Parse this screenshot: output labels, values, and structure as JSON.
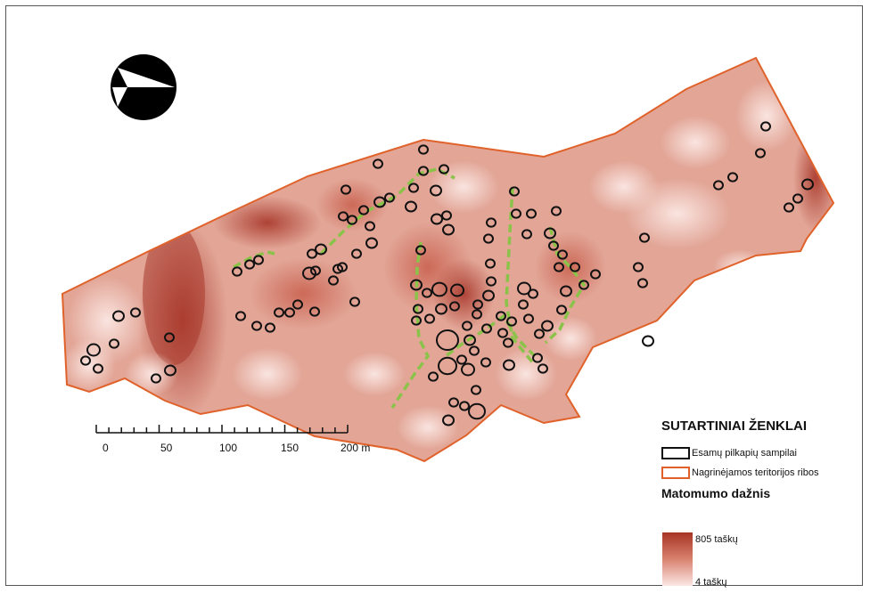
{
  "legend": {
    "title": "SUTARTINIAI ŽENKLAI",
    "items": [
      {
        "label": "Esamų pilkapių sampilai",
        "color": "#111111"
      },
      {
        "label": "Nagrinėjamos teritorijos ribos",
        "color": "#e0622a"
      }
    ],
    "frequency_title": "Matomumo dažnis",
    "max_label": "805 taškų",
    "min_label": "4 taškų",
    "max_color": "#a83424",
    "min_color": "#fbe7e4"
  },
  "scale_bar": {
    "labels": [
      "0",
      "50",
      "100",
      "150",
      "200 m"
    ]
  },
  "north_arrow": {
    "icon": "north-arrow-icon"
  },
  "colors": {
    "boundary": "#e0622a",
    "mounds": "#111111",
    "paths": "#8bc34a"
  }
}
